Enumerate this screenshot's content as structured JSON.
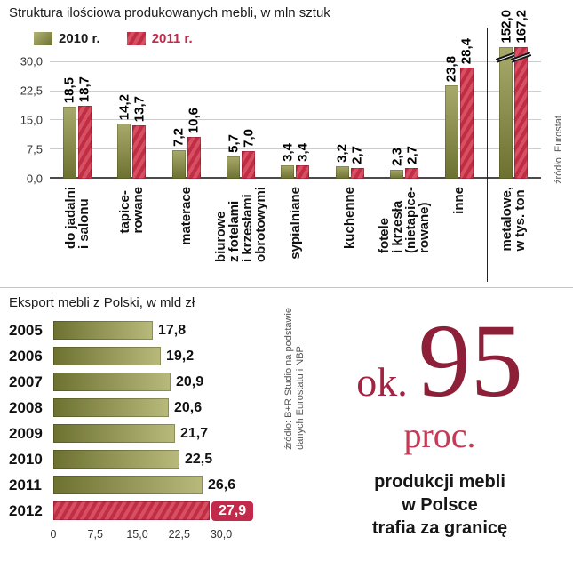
{
  "colors": {
    "olive": "#6d7130",
    "olive_light": "#b8ba7c",
    "red": "#c2294a",
    "red_dark": "#8e1f38",
    "grid": "#cccccc"
  },
  "chart_data": [
    {
      "type": "bar",
      "title": "Struktura ilościowa produkowanych mebli, w mln sztuk",
      "categories": [
        "do jadalni\ni salonu",
        "tapice-\nrowane",
        "materace",
        "biurowe\nz fotelami\ni krzesłami\nobrotowymi",
        "sypialniane",
        "kuchenne",
        "fotele\ni krzesła\n(nietapice-\nrowane)",
        "inne",
        "metalowe,\nw tys. ton"
      ],
      "series": [
        {
          "name": "2010 r.",
          "values": [
            18.5,
            14.2,
            7.2,
            5.7,
            3.4,
            3.2,
            2.3,
            23.8,
            152.0
          ],
          "labels": [
            "18,5",
            "14,2",
            "7,2",
            "5,7",
            "3,4",
            "3,2",
            "2,3",
            "23,8",
            "152,0"
          ]
        },
        {
          "name": "2011 r.",
          "values": [
            18.7,
            13.7,
            10.6,
            7.0,
            3.4,
            2.7,
            2.7,
            28.4,
            167.2
          ],
          "labels": [
            "18,7",
            "13,7",
            "10,6",
            "7,0",
            "3,4",
            "2,7",
            "2,7",
            "28,4",
            "167,2"
          ]
        }
      ],
      "y_ticks": [
        "30,0",
        "22,5",
        "15,0",
        "7,5",
        "0,0"
      ],
      "ylim": [
        0,
        30
      ],
      "broken_axis_last_category": true,
      "legend_position": "top-left",
      "source": "źródło: Eurostat"
    },
    {
      "type": "bar-horizontal",
      "title": "Eksport mebli z Polski, w mld zł",
      "categories": [
        "2005",
        "2006",
        "2007",
        "2008",
        "2009",
        "2010",
        "2011",
        "2012"
      ],
      "values": [
        17.8,
        19.2,
        20.9,
        20.6,
        21.7,
        22.5,
        26.6,
        27.9
      ],
      "labels": [
        "17,8",
        "19,2",
        "20,9",
        "20,6",
        "21,7",
        "22,5",
        "26,6",
        "27,9"
      ],
      "x_ticks": [
        "0",
        "7,5",
        "15,0",
        "22,5",
        "30,0"
      ],
      "x_tick_values": [
        0,
        7.5,
        15,
        22.5,
        30
      ],
      "xlim": [
        0,
        30
      ],
      "highlight_category": "2012",
      "source": "źródło: B+R Studio na podstawie\ndanych Eurostatu i NBP"
    }
  ],
  "big_stat": {
    "prefix": "ok.",
    "number": "95",
    "unit": "proc.",
    "lines": [
      "produkcji mebli",
      "w Polsce",
      "trafia za granicę"
    ]
  }
}
